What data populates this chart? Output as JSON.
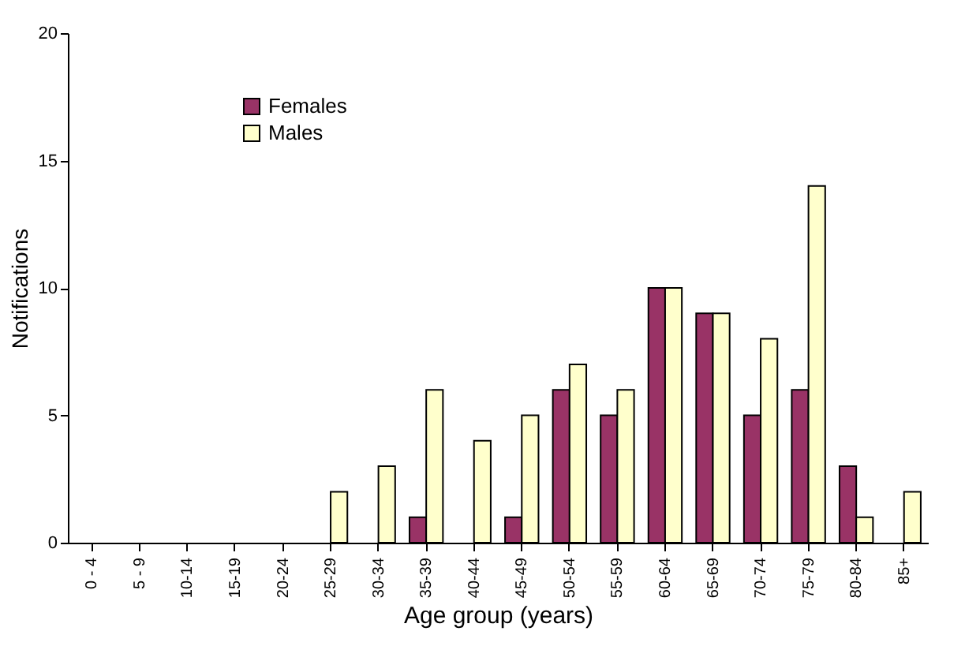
{
  "chart_data": {
    "type": "bar",
    "xlabel": "Age group (years)",
    "ylabel": "Notifications",
    "categories": [
      "0 - 4",
      "5 - 9",
      "10-14",
      "15-19",
      "20-24",
      "25-29",
      "30-34",
      "35-39",
      "40-44",
      "45-49",
      "50-54",
      "55-59",
      "60-64",
      "65-69",
      "70-74",
      "75-79",
      "80-84",
      "85+"
    ],
    "series": [
      {
        "name": "Females",
        "color": "#993366",
        "values": [
          0,
          0,
          0,
          0,
          0,
          0,
          0,
          1,
          0,
          1,
          6,
          5,
          10,
          9,
          5,
          6,
          3,
          0
        ]
      },
      {
        "name": "Males",
        "color": "#ffffcc",
        "values": [
          0,
          0,
          0,
          0,
          0,
          2,
          3,
          6,
          4,
          5,
          7,
          6,
          10,
          9,
          8,
          14,
          1,
          2
        ]
      }
    ],
    "ylim": [
      0,
      20
    ],
    "yticks": [
      0,
      5,
      10,
      15,
      20
    ],
    "grid": false,
    "legend": "top left"
  }
}
